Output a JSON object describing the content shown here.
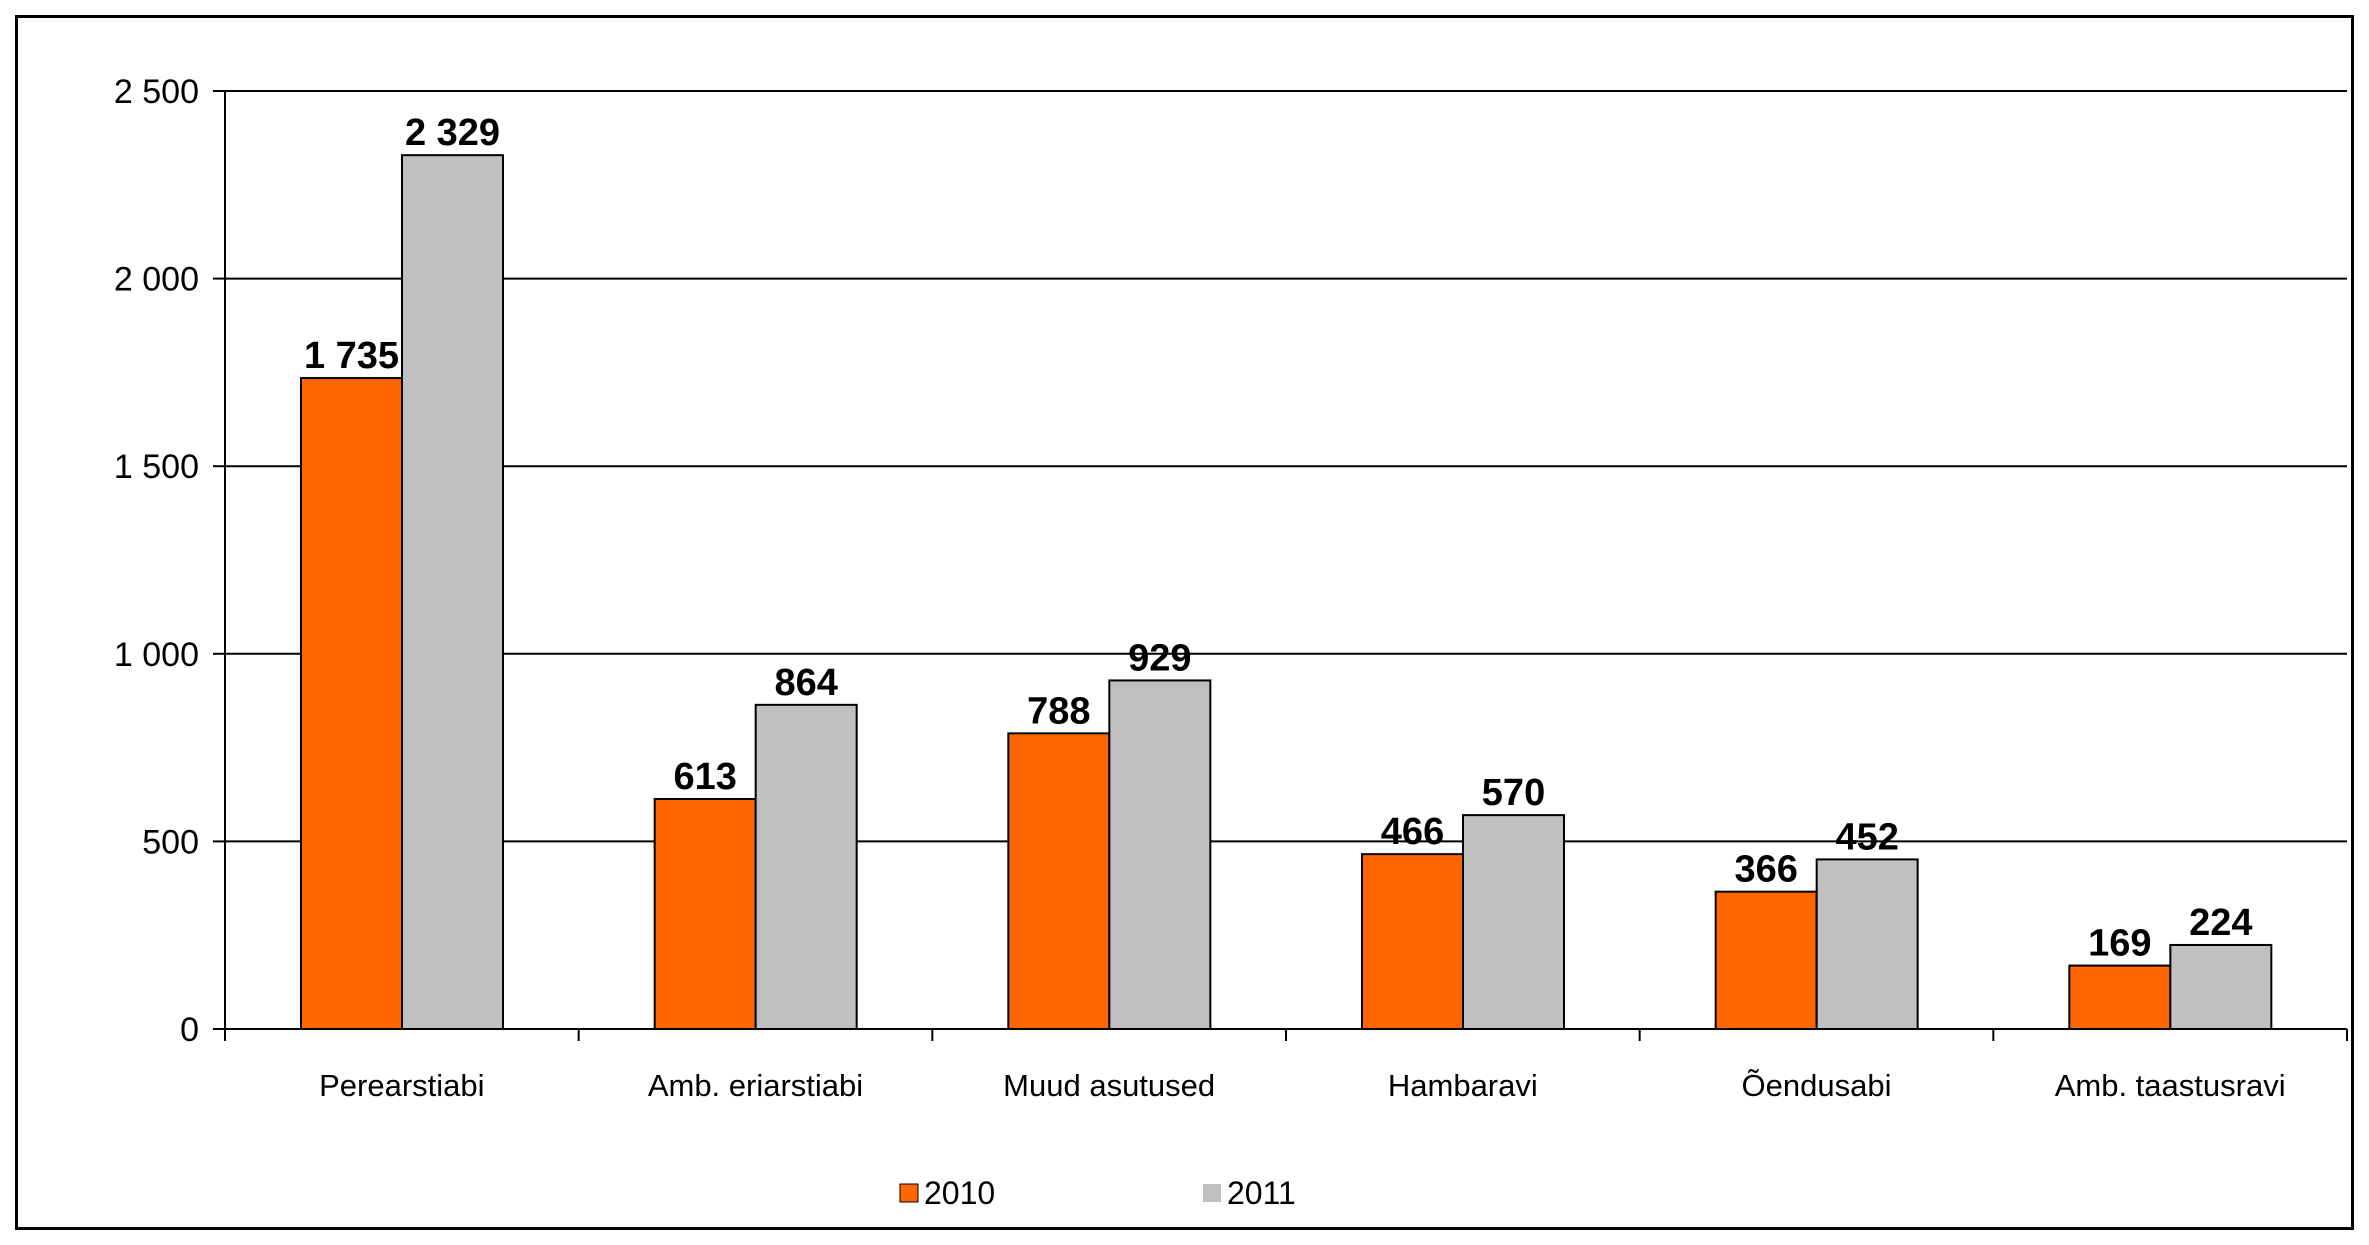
{
  "chart_data": {
    "type": "bar",
    "title": "",
    "xlabel": "",
    "ylabel": "",
    "categories": [
      "Perearstiabi",
      "Amb. eriarstiabi",
      "Muud asutused",
      "Hambaravi",
      "Õendusabi",
      "Amb. taastusravi"
    ],
    "series": [
      {
        "name": "2010",
        "color": "#FF6600",
        "values": [
          1735,
          613,
          788,
          466,
          366,
          169
        ],
        "labels": [
          "1 735",
          "613",
          "788",
          "466",
          "366",
          "169"
        ]
      },
      {
        "name": "2011",
        "color": "#C0C0C0",
        "values": [
          2329,
          864,
          929,
          570,
          452,
          224
        ],
        "labels": [
          "2 329",
          "864",
          "929",
          "570",
          "452",
          "224"
        ]
      }
    ],
    "ylim": [
      0,
      2500
    ],
    "yticks": [
      0,
      500,
      1000,
      1500,
      2000,
      2500
    ],
    "ytick_labels": [
      "0",
      "500",
      "1 000",
      "1 500",
      "2 000",
      "2 500"
    ],
    "grid": true,
    "legend": "bottom-center"
  }
}
